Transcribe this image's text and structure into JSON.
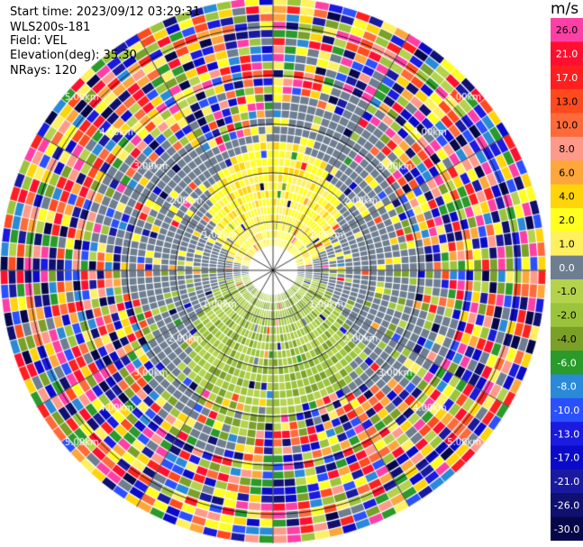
{
  "header": {
    "start_time": "Start time: 2023/09/12 03:29:31",
    "instrument": "WLS200s-181",
    "field": "Field: VEL",
    "elevation": "Elevation(deg): 35.30",
    "nrays": "NRays: 120"
  },
  "colorbar": {
    "unit": "m/s",
    "ticks": [
      "26.0",
      "21.0",
      "17.0",
      "13.0",
      "10.0",
      "8.0",
      "6.0",
      "4.0",
      "2.0",
      "1.0",
      "0.0",
      "-1.0",
      "-2.0",
      "-4.0",
      "-6.0",
      "-8.0",
      "-10.0",
      "-13.0",
      "-17.0",
      "-21.0",
      "-26.0",
      "-30.0"
    ],
    "colors": [
      "#ff3fa6",
      "#ff0f2f",
      "#ff1f1f",
      "#ff4a1e",
      "#ff6a3a",
      "#ff9a8a",
      "#ffa63a",
      "#ffd40a",
      "#ffff20",
      "#fff060",
      "#6e7e90",
      "#b4d24c",
      "#9bc43c",
      "#7aa028",
      "#2a9a2a",
      "#2a8ad8",
      "#2a50ff",
      "#1a1ae0",
      "#0a0ac8",
      "#1a1aa0",
      "#101070",
      "#06064a"
    ]
  },
  "chart_data": {
    "type": "heatmap",
    "title": "",
    "projection": "polar PPI",
    "field": "VEL",
    "unit": "m/s",
    "nrays": 120,
    "range_ring_labels_km": [
      "1.00km",
      "2.00km",
      "3.00km",
      "4.00km",
      "5.00km"
    ],
    "range_rings_km": [
      1,
      2,
      3,
      4,
      5
    ],
    "radial_lines_deg": [
      0,
      30,
      60,
      90,
      120,
      150,
      180,
      210,
      240,
      270,
      300,
      330
    ],
    "max_range_km": 5.6,
    "velocity_pattern": [
      {
        "region": "north sector, near range (up to ~2.3 km)",
        "velocity_ms": "2.0 to 4.0"
      },
      {
        "region": "south sector, near range (up to ~2.7 km)",
        "velocity_ms": "-1.0 to -2.0"
      },
      {
        "region": "east/west sectors, near range",
        "velocity_ms": "0.0"
      },
      {
        "region": "range beyond ~3.5 km",
        "velocity_ms": "noise, -30.0 to 26.0"
      }
    ]
  }
}
